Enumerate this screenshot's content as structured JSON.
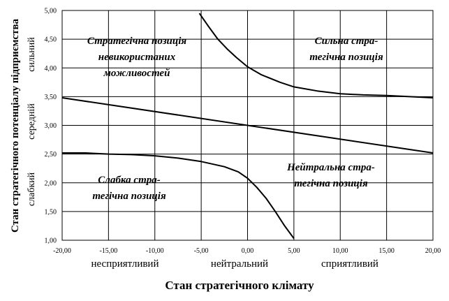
{
  "chart_data": {
    "type": "line",
    "xlabel": "Стан стратегічного  клімату",
    "ylabel": "Стан стратегічного потенціалу підприємства",
    "xlim": [
      -20,
      20
    ],
    "ylim": [
      1,
      5
    ],
    "x_ticks": [
      "-20,00",
      "-15,00",
      "-10,00",
      "-5,00",
      "0,00",
      "5,00",
      "10,00",
      "15,00",
      "20,00"
    ],
    "y_ticks": [
      "1,00",
      "1,50",
      "2,00",
      "2,50",
      "3,00",
      "3,50",
      "4,00",
      "4,50",
      "5,00"
    ],
    "x_categories": [
      "несприятливий",
      "нейтральний",
      "сприятливий"
    ],
    "y_categories": [
      "слабкий",
      "середній",
      "сильний"
    ],
    "grid": true,
    "zones": [
      {
        "lines": [
          "Стратегічна позиція",
          "невикористаних",
          "можливостей"
        ]
      },
      {
        "lines": [
          "Сильна стра-",
          "тегічна  позиція"
        ]
      },
      {
        "lines": [
          "Слабка стра-",
          "тегічна  позиція"
        ]
      },
      {
        "lines": [
          "Нейтральна стра-",
          "тегічна  позиція"
        ]
      }
    ],
    "series": [
      {
        "x": [
          -20,
          20
        ],
        "y": [
          3.48,
          2.52
        ]
      },
      {
        "x": [
          -5.2,
          -4.2,
          -3.2,
          -2.2,
          -1.2,
          0,
          1.5,
          3.5,
          5,
          7.5,
          10,
          12.5,
          15,
          17.5,
          20
        ],
        "y": [
          4.95,
          4.72,
          4.5,
          4.33,
          4.18,
          4.02,
          3.88,
          3.75,
          3.67,
          3.6,
          3.55,
          3.53,
          3.52,
          3.5,
          3.48
        ]
      },
      {
        "x": [
          -20,
          -17.5,
          -15,
          -12.5,
          -10,
          -7.5,
          -5,
          -2.5,
          -1,
          0,
          1,
          2,
          3,
          4,
          5
        ],
        "y": [
          2.52,
          2.52,
          2.5,
          2.49,
          2.47,
          2.43,
          2.37,
          2.28,
          2.19,
          2.08,
          1.92,
          1.73,
          1.5,
          1.25,
          1.03
        ]
      }
    ]
  }
}
